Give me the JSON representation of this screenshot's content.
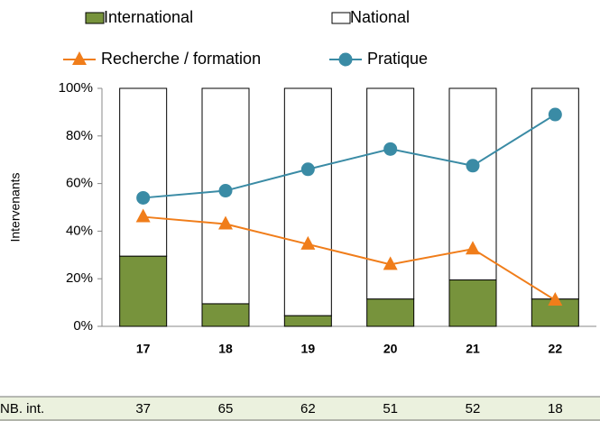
{
  "chart_data": {
    "type": "bar_line",
    "y_label": "Intervenants",
    "categories": [
      "17",
      "18",
      "19",
      "20",
      "21",
      "22"
    ],
    "series": [
      {
        "name": "International",
        "kind": "bar",
        "color": "#77933c",
        "values": [
          29.5,
          9.5,
          4.5,
          11.5,
          19.5,
          11.5
        ]
      },
      {
        "name": "National",
        "kind": "bar",
        "color": "#ffffff",
        "values": [
          70.5,
          90.5,
          95.5,
          88.5,
          80.5,
          88.5
        ]
      },
      {
        "name": "Recherche / formation",
        "kind": "line",
        "marker": "triangle",
        "color": "#f07d1a",
        "values": [
          46,
          43,
          34.5,
          26,
          32.5,
          11
        ]
      },
      {
        "name": "Pratique",
        "kind": "line",
        "marker": "circle",
        "color": "#3a8ba5",
        "values": [
          54,
          57,
          66,
          74.5,
          67.5,
          89
        ]
      }
    ],
    "ylim": [
      0,
      100
    ],
    "yticks": [
      {
        "value": 0,
        "label": "0%"
      },
      {
        "value": 20,
        "label": "20%"
      },
      {
        "value": 40,
        "label": "40%"
      },
      {
        "value": 60,
        "label": "60%"
      },
      {
        "value": 80,
        "label": "80%"
      },
      {
        "value": 100,
        "label": "100%"
      }
    ],
    "table": {
      "label": "NB. int.",
      "values": [
        37,
        65,
        62,
        51,
        52,
        18
      ]
    }
  }
}
